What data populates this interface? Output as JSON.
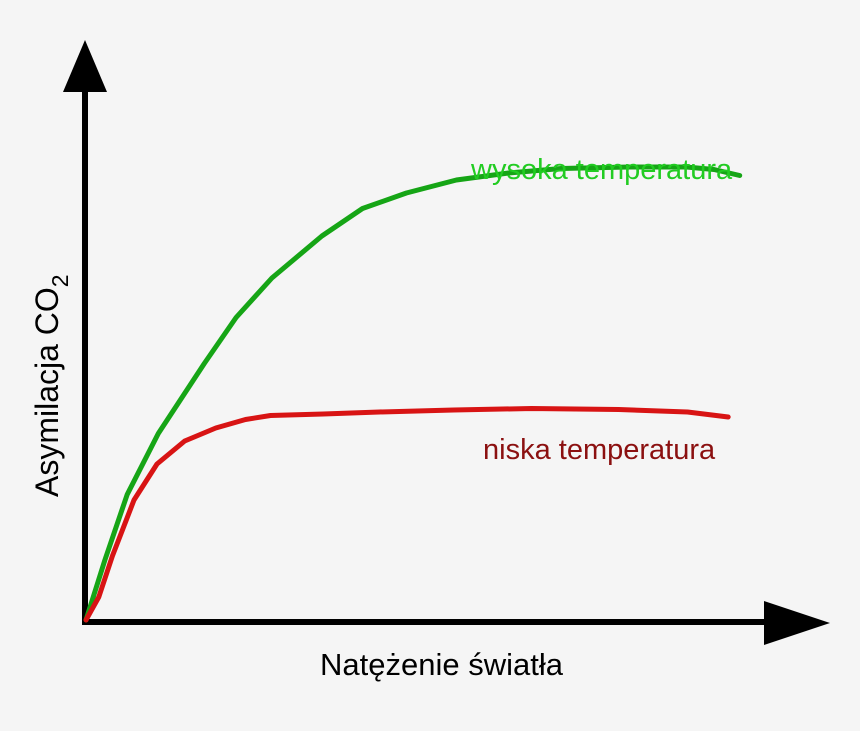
{
  "chart_data": {
    "type": "line",
    "title": "",
    "xlabel": "Natężenie światła",
    "ylabel_main": "Asymilacja CO",
    "ylabel_sub": "2",
    "xlim": [
      0,
      100
    ],
    "ylim": [
      0,
      100
    ],
    "grid": false,
    "series": [
      {
        "name": "wysoka temperatura",
        "color": "#16a516",
        "x": [
          0,
          2.8,
          6.1,
          10.7,
          17.5,
          22.2,
          27.5,
          34.9,
          40.9,
          47.4,
          54.8,
          62.5,
          70.3,
          80.3,
          88.8,
          92.9,
          96.7
        ],
        "y": [
          0,
          12.0,
          25.1,
          37.3,
          51.3,
          60.5,
          68.4,
          76.8,
          82.3,
          85.4,
          88.0,
          89.4,
          90.3,
          90.6,
          90.6,
          90.1,
          88.9
        ]
      },
      {
        "name": "niska temperatura",
        "color": "#d81414",
        "x": [
          0,
          1.9,
          3.9,
          7.1,
          10.5,
          14.6,
          19.2,
          23.6,
          27.3,
          35.1,
          43.4,
          54.4,
          65.9,
          78.8,
          89.0,
          95.0
        ],
        "y": [
          0,
          4.6,
          12.8,
          24.0,
          31.2,
          35.8,
          38.4,
          40.1,
          40.9,
          41.2,
          41.6,
          42.0,
          42.3,
          42.1,
          41.6,
          40.6
        ]
      }
    ]
  }
}
